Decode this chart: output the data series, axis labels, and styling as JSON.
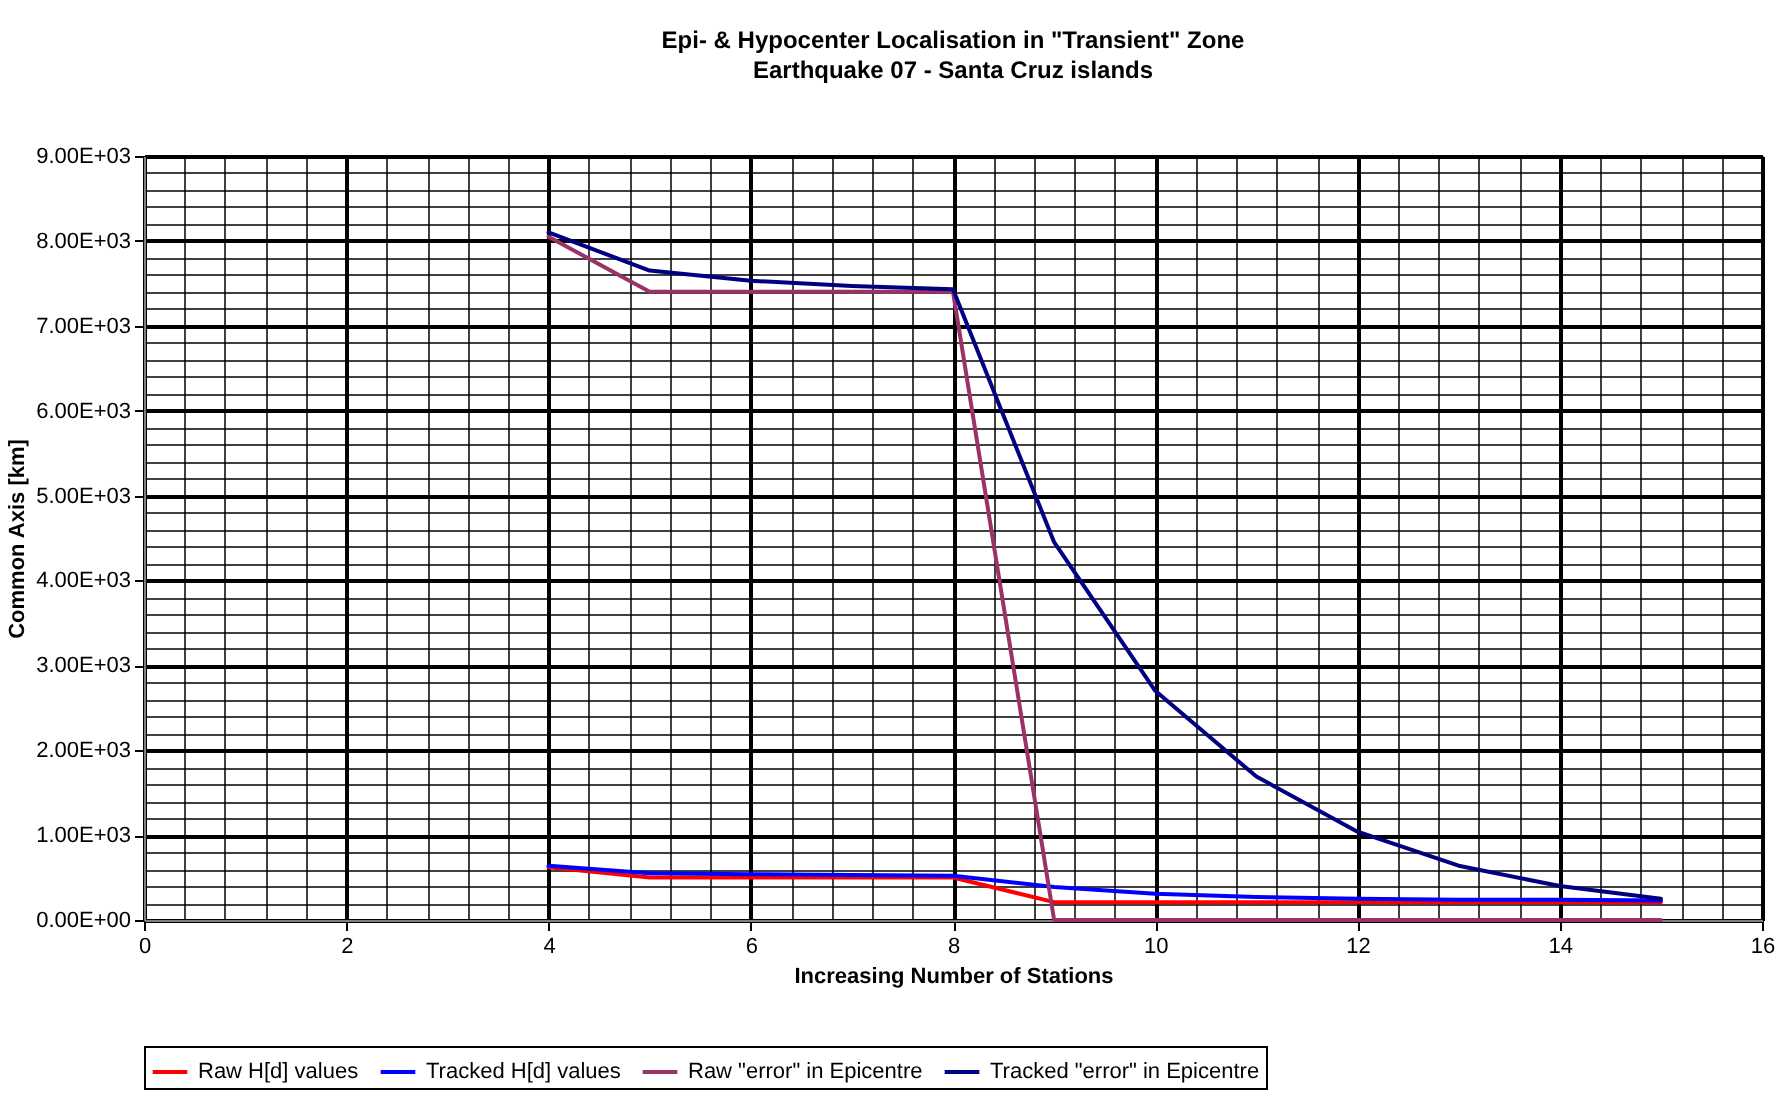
{
  "chart_data": {
    "type": "line",
    "title": "Epi- & Hypocenter Localisation in \"Transient\" Zone",
    "subtitle": "Earthquake 07 - Santa Cruz islands",
    "xlabel": "Increasing Number of Stations",
    "ylabel": "Common Axis [km]",
    "x": [
      4,
      5,
      6,
      7,
      8,
      9,
      10,
      11,
      12,
      13,
      14,
      15
    ],
    "series": [
      {
        "name": "Raw H[d] values",
        "color": "#ff0000",
        "values": [
          620,
          500,
          500,
          500,
          500,
          210,
          210,
          210,
          210,
          210,
          210,
          210
        ]
      },
      {
        "name": "Tracked H[d] values",
        "color": "#0000ff",
        "values": [
          640,
          550,
          540,
          530,
          520,
          390,
          310,
          270,
          250,
          240,
          240,
          230
        ]
      },
      {
        "name": "Raw \"error\" in Epicentre",
        "color": "#993366",
        "values": [
          8050,
          7400,
          7400,
          7400,
          7400,
          0,
          0,
          0,
          0,
          0,
          0,
          0
        ]
      },
      {
        "name": "Tracked \"error\" in Epicentre",
        "color": "#000080",
        "values": [
          8100,
          7650,
          7530,
          7470,
          7430,
          4450,
          2700,
          1690,
          1040,
          640,
          400,
          250
        ]
      }
    ],
    "xlim": [
      0,
      16
    ],
    "xticks": [
      0,
      2,
      4,
      6,
      8,
      10,
      12,
      14,
      16
    ],
    "ylim": [
      0,
      9000
    ],
    "yticks": [
      {
        "value": 0,
        "label": "0.00E+00"
      },
      {
        "value": 1000,
        "label": "1.00E+03"
      },
      {
        "value": 2000,
        "label": "2.00E+03"
      },
      {
        "value": 3000,
        "label": "3.00E+03"
      },
      {
        "value": 4000,
        "label": "4.00E+03"
      },
      {
        "value": 5000,
        "label": "5.00E+03"
      },
      {
        "value": 6000,
        "label": "6.00E+03"
      },
      {
        "value": 7000,
        "label": "7.00E+03"
      },
      {
        "value": 8000,
        "label": "8.00E+03"
      },
      {
        "value": 9000,
        "label": "9.00E+03"
      }
    ],
    "grid": true,
    "legend": "bottom",
    "marker": "none",
    "line_style": "solid"
  }
}
